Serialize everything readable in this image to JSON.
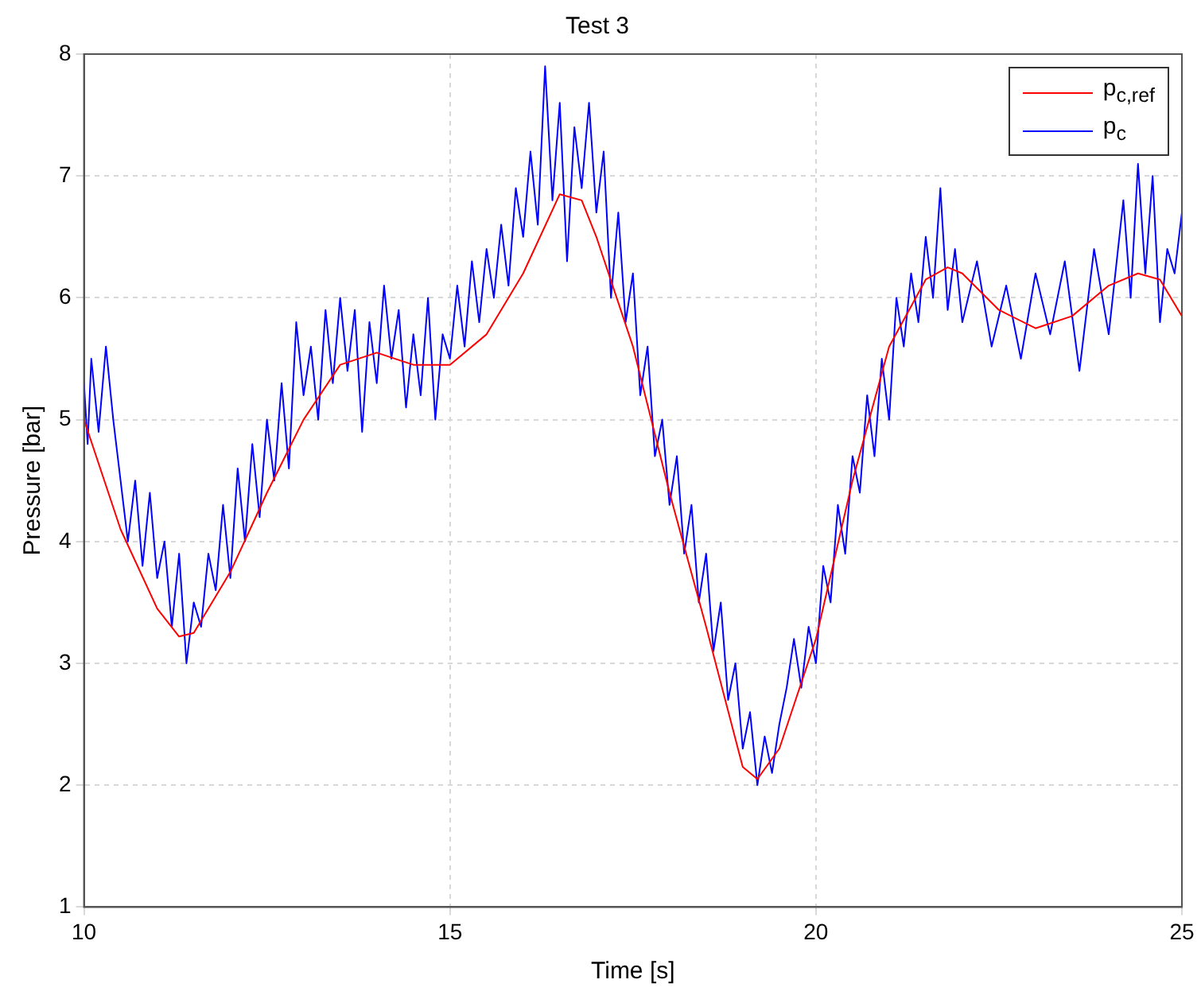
{
  "chart_data": {
    "type": "line",
    "title": "Test 3",
    "xlabel": "Time [s]",
    "ylabel": "Pressure [bar]",
    "xlim": [
      10,
      25
    ],
    "xticks": [
      10,
      15,
      20,
      25
    ],
    "ylim": [
      1,
      8
    ],
    "yticks": [
      1,
      2,
      3,
      4,
      5,
      6,
      7,
      8
    ],
    "grid": true,
    "legend": "top right",
    "marker": "none",
    "line_style": "solid",
    "series": [
      {
        "name": "p$_{c,ref}$",
        "color": "#ff0000",
        "x": [
          10,
          10.5,
          11,
          11.3,
          11.5,
          12,
          12.5,
          13,
          13.5,
          14,
          14.5,
          15,
          15.5,
          16,
          16.5,
          16.8,
          17,
          17.5,
          18,
          18.5,
          19,
          19.2,
          19.5,
          20,
          20.5,
          21,
          21.5,
          21.8,
          22,
          22.5,
          23,
          23.5,
          24,
          24.4,
          24.7,
          25
        ],
        "values": [
          5.0,
          4.1,
          3.45,
          3.22,
          3.25,
          3.75,
          4.4,
          5.0,
          5.45,
          5.55,
          5.45,
          5.45,
          5.7,
          6.2,
          6.85,
          6.8,
          6.5,
          5.6,
          4.4,
          3.3,
          2.15,
          2.05,
          2.3,
          3.2,
          4.5,
          5.6,
          6.15,
          6.25,
          6.2,
          5.9,
          5.75,
          5.85,
          6.1,
          6.2,
          6.15,
          5.85
        ]
      },
      {
        "name": "p$_{c}$",
        "color": "#0000ff",
        "x": [
          10,
          10.05,
          10.1,
          10.2,
          10.3,
          10.4,
          10.5,
          10.6,
          10.7,
          10.8,
          10.9,
          11,
          11.1,
          11.2,
          11.3,
          11.4,
          11.5,
          11.6,
          11.7,
          11.8,
          11.9,
          12,
          12.1,
          12.2,
          12.3,
          12.4,
          12.5,
          12.6,
          12.7,
          12.8,
          12.9,
          13,
          13.1,
          13.2,
          13.3,
          13.4,
          13.5,
          13.6,
          13.7,
          13.8,
          13.9,
          14,
          14.1,
          14.2,
          14.3,
          14.4,
          14.5,
          14.6,
          14.7,
          14.8,
          14.9,
          15,
          15.1,
          15.2,
          15.3,
          15.4,
          15.5,
          15.6,
          15.7,
          15.8,
          15.9,
          16,
          16.1,
          16.2,
          16.3,
          16.4,
          16.5,
          16.6,
          16.7,
          16.8,
          16.9,
          17,
          17.1,
          17.2,
          17.3,
          17.4,
          17.5,
          17.6,
          17.7,
          17.8,
          17.9,
          18,
          18.1,
          18.2,
          18.3,
          18.4,
          18.5,
          18.6,
          18.7,
          18.8,
          18.9,
          19,
          19.1,
          19.2,
          19.3,
          19.4,
          19.5,
          19.6,
          19.7,
          19.8,
          19.9,
          20,
          20.1,
          20.2,
          20.3,
          20.4,
          20.5,
          20.6,
          20.7,
          20.8,
          20.9,
          21,
          21.1,
          21.2,
          21.3,
          21.4,
          21.5,
          21.6,
          21.7,
          21.8,
          21.9,
          22,
          22.2,
          22.4,
          22.6,
          22.8,
          23,
          23.2,
          23.4,
          23.6,
          23.8,
          24,
          24.2,
          24.3,
          24.4,
          24.5,
          24.6,
          24.7,
          24.8,
          24.9,
          25
        ],
        "values": [
          5.3,
          4.8,
          5.5,
          4.9,
          5.6,
          5.0,
          4.5,
          4.0,
          4.5,
          3.8,
          4.4,
          3.7,
          4.0,
          3.3,
          3.9,
          3.0,
          3.5,
          3.3,
          3.9,
          3.6,
          4.3,
          3.7,
          4.6,
          4.0,
          4.8,
          4.2,
          5.0,
          4.5,
          5.3,
          4.6,
          5.8,
          5.2,
          5.6,
          5.0,
          5.9,
          5.3,
          6.0,
          5.4,
          5.9,
          4.9,
          5.8,
          5.3,
          6.1,
          5.5,
          5.9,
          5.1,
          5.7,
          5.2,
          6.0,
          5.0,
          5.7,
          5.5,
          6.1,
          5.6,
          6.3,
          5.8,
          6.4,
          6.0,
          6.6,
          6.1,
          6.9,
          6.5,
          7.2,
          6.6,
          7.9,
          6.8,
          7.6,
          6.3,
          7.4,
          6.9,
          7.6,
          6.7,
          7.2,
          6.0,
          6.7,
          5.8,
          6.2,
          5.2,
          5.6,
          4.7,
          5.0,
          4.3,
          4.7,
          3.9,
          4.3,
          3.5,
          3.9,
          3.1,
          3.5,
          2.7,
          3.0,
          2.3,
          2.6,
          2.0,
          2.4,
          2.1,
          2.5,
          2.8,
          3.2,
          2.8,
          3.3,
          3.0,
          3.8,
          3.5,
          4.3,
          3.9,
          4.7,
          4.4,
          5.2,
          4.7,
          5.5,
          5.0,
          6.0,
          5.6,
          6.2,
          5.8,
          6.5,
          6.0,
          6.9,
          5.9,
          6.4,
          5.8,
          6.3,
          5.6,
          6.1,
          5.5,
          6.2,
          5.7,
          6.3,
          5.4,
          6.4,
          5.7,
          6.8,
          6.0,
          7.1,
          6.2,
          7.0,
          5.8,
          6.4,
          6.2,
          6.7
        ]
      }
    ]
  }
}
